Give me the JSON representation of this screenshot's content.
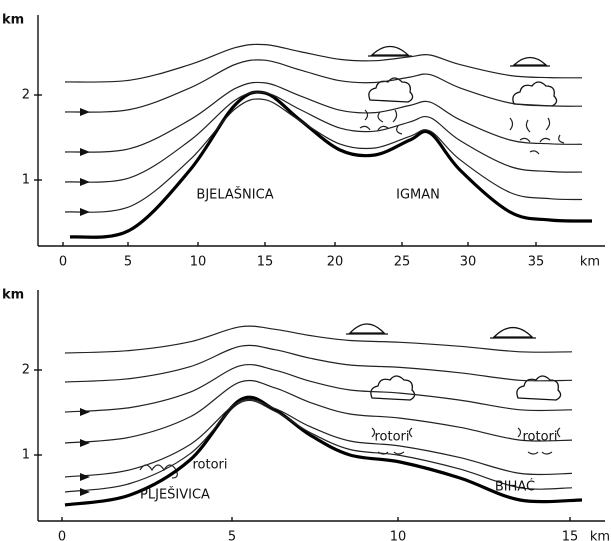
{
  "panels": [
    {
      "y_axis_label": "km",
      "y_ticks": [
        "1",
        "2"
      ],
      "x_ticks": [
        "0",
        "5",
        "10",
        "15",
        "20",
        "25",
        "30",
        "35"
      ],
      "x_unit": "km",
      "labels": [
        "BJELAŠNICA",
        "IGMAN"
      ]
    },
    {
      "y_axis_label": "km",
      "y_ticks": [
        "1",
        "2"
      ],
      "x_ticks": [
        "0",
        "5",
        "10",
        "15"
      ],
      "x_unit": "km",
      "labels": [
        "PLJEŠIVICA",
        "BIHAĆ",
        "rotori",
        "rotori",
        "rotori"
      ]
    }
  ]
}
